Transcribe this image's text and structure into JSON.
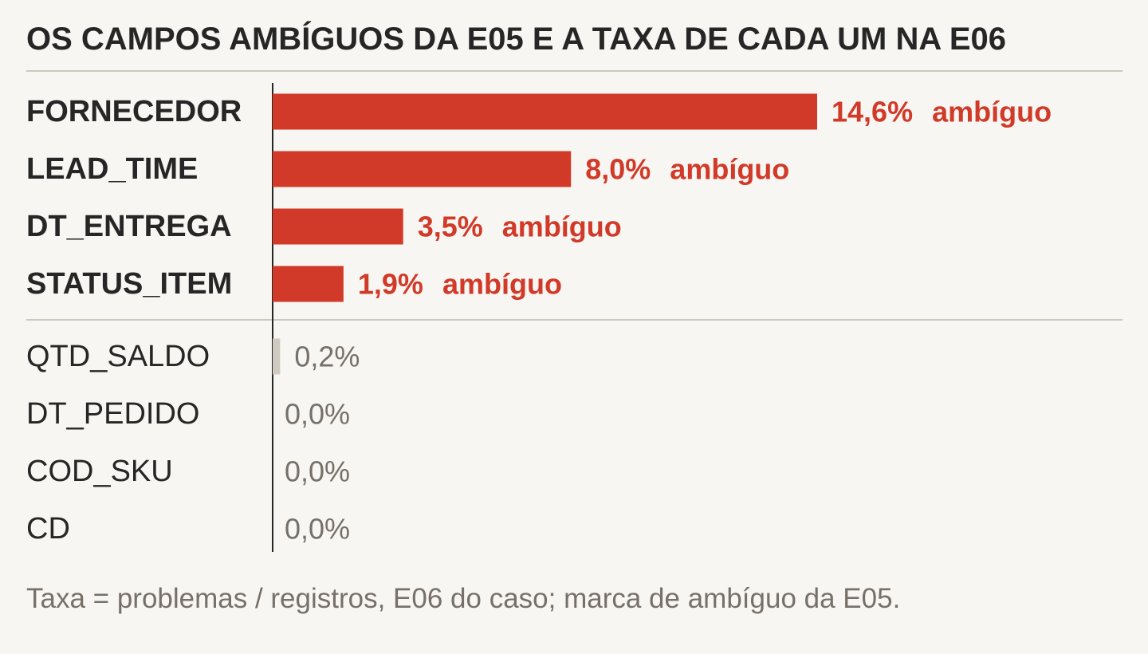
{
  "chart_data": {
    "type": "bar",
    "orientation": "horizontal",
    "title": "OS CAMPOS AMBÍGUOS DA E05 E A TAXA DE CADA UM NA E06",
    "xlabel": "",
    "ylabel": "",
    "xlim": [
      0,
      15.9
    ],
    "grid": false,
    "categories": [
      "FORNECEDOR",
      "LEAD_TIME",
      "DT_ENTREGA",
      "STATUS_ITEM",
      "QTD_SALDO",
      "DT_PEDIDO",
      "COD_SKU",
      "CD"
    ],
    "values": [
      14.6,
      8.0,
      3.5,
      1.9,
      0.2,
      0.0,
      0.0,
      0.0
    ],
    "value_labels": [
      "14,6%",
      "8,0%",
      "3,5%",
      "1,9%",
      "0,2%",
      "0,0%",
      "0,0%",
      "0,0%"
    ],
    "ambiguous": [
      true,
      true,
      true,
      true,
      false,
      false,
      false,
      false
    ],
    "ambiguous_label": "ambíguo",
    "colors": {
      "ambiguous": "#d13a28",
      "other": "#cfcac0",
      "label_dark": "#262626",
      "value_gray": "#767069"
    }
  },
  "footnote": "Taxa = problemas / registros, E06 do caso; marca de ambíguo da E05."
}
